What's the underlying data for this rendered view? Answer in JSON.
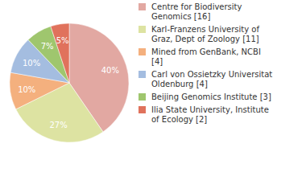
{
  "chart_data": {
    "type": "pie",
    "categories": [
      "Centre for Biodiversity Genomics [16]",
      "Karl-Franzens University of Graz, Dept of Zoology [11]",
      "Mined from GenBank, NCBI [4]",
      "Carl von Ossietzky Universitat Oldenburg [4]",
      "Beijing Genomics Institute [3]",
      "Ilia State University, Institute of Ecology [2]"
    ],
    "values": [
      40,
      27,
      10,
      10,
      7,
      5
    ],
    "value_labels": [
      "40%",
      "27%",
      "10%",
      "10%",
      "7%",
      "5%"
    ],
    "colors": [
      "#e2a8a2",
      "#dde3a2",
      "#f4b07e",
      "#a4bde0",
      "#9fc66e",
      "#e0725c"
    ],
    "data_labels": true,
    "legend": "right"
  }
}
